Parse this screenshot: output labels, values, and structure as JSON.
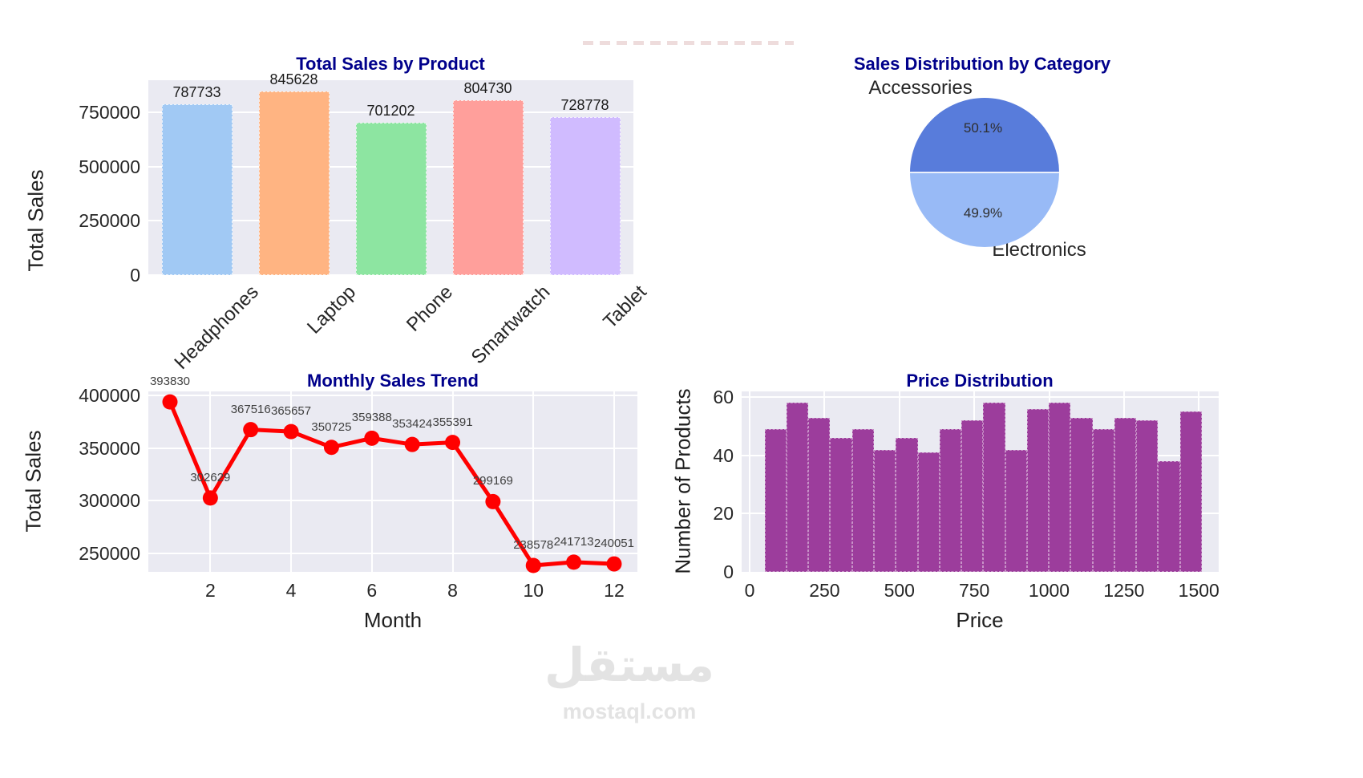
{
  "styles": {
    "plot_background": "#eaeaf2",
    "grid_color": "#ffffff",
    "title_color": "#00008b",
    "tick_color": "#262626",
    "annotation_color": "#404040",
    "line_red": "#ff0000",
    "histogram_purple": "#9c3d9c",
    "pie_dark_blue": "#587cdb",
    "pie_light_blue": "#98baf6"
  },
  "watermark": {
    "arabic_text": "مستقل",
    "site_text": "mostaql.com"
  },
  "chart_data": [
    {
      "type": "bar",
      "title": "Total Sales by Product",
      "xlabel": "",
      "ylabel": "Total Sales",
      "categories": [
        "Headphones",
        "Laptop",
        "Phone",
        "Smartwatch",
        "Tablet"
      ],
      "values": [
        787733,
        845628,
        701202,
        804730,
        728778
      ],
      "bar_colors": [
        "#a1c9f4",
        "#ffb482",
        "#8de5a1",
        "#ff9f9b",
        "#d0bbff"
      ],
      "yticks": [
        0,
        250000,
        500000,
        750000
      ],
      "ylim": [
        0,
        868000
      ],
      "grid": "horizontal",
      "legend": "none"
    },
    {
      "type": "pie",
      "title": "Sales Distribution by Category",
      "labels": [
        "Accessories",
        "Electronics"
      ],
      "values": [
        50.1,
        49.9
      ],
      "pct_labels": [
        "50.1%",
        "49.9%"
      ],
      "slice_colors": [
        "#587cdb",
        "#98baf6"
      ],
      "layout": "accessories-top-half-electronics-bottom-half"
    },
    {
      "type": "line",
      "title": "Monthly Sales Trend",
      "xlabel": "Month",
      "ylabel": "Total Sales",
      "x": [
        1,
        2,
        3,
        4,
        5,
        6,
        7,
        8,
        9,
        10,
        11,
        12
      ],
      "values": [
        393830,
        302629,
        367516,
        365657,
        350725,
        359388,
        353424,
        355391,
        299169,
        238578,
        241713,
        240051
      ],
      "point_labels": [
        "393830",
        "302629",
        "367516",
        "365657",
        "350725",
        "359388",
        "353424",
        "355391",
        "299169",
        "238578",
        "241713",
        "240051"
      ],
      "xticks": [
        2,
        4,
        6,
        8,
        10,
        12
      ],
      "yticks": [
        250000,
        300000,
        350000,
        400000
      ],
      "ylim": [
        228000,
        405000
      ],
      "line_color": "#ff0000",
      "marker": "circle",
      "grid": "both",
      "legend": "none"
    },
    {
      "type": "histogram",
      "title": "Price Distribution",
      "xlabel": "Price",
      "ylabel": "Number of Products",
      "bin_start": 50,
      "bin_width": 73,
      "counts": [
        49,
        58,
        53,
        46,
        49,
        42,
        46,
        41,
        49,
        52,
        58,
        42,
        56,
        58,
        53,
        49,
        53,
        52,
        38,
        55
      ],
      "xticks": [
        0,
        250,
        500,
        750,
        1000,
        1250,
        1500
      ],
      "yticks": [
        0,
        20,
        40,
        60
      ],
      "ylim": [
        0,
        62
      ],
      "bar_color": "#9c3d9c",
      "grid": "both",
      "legend": "none"
    }
  ]
}
